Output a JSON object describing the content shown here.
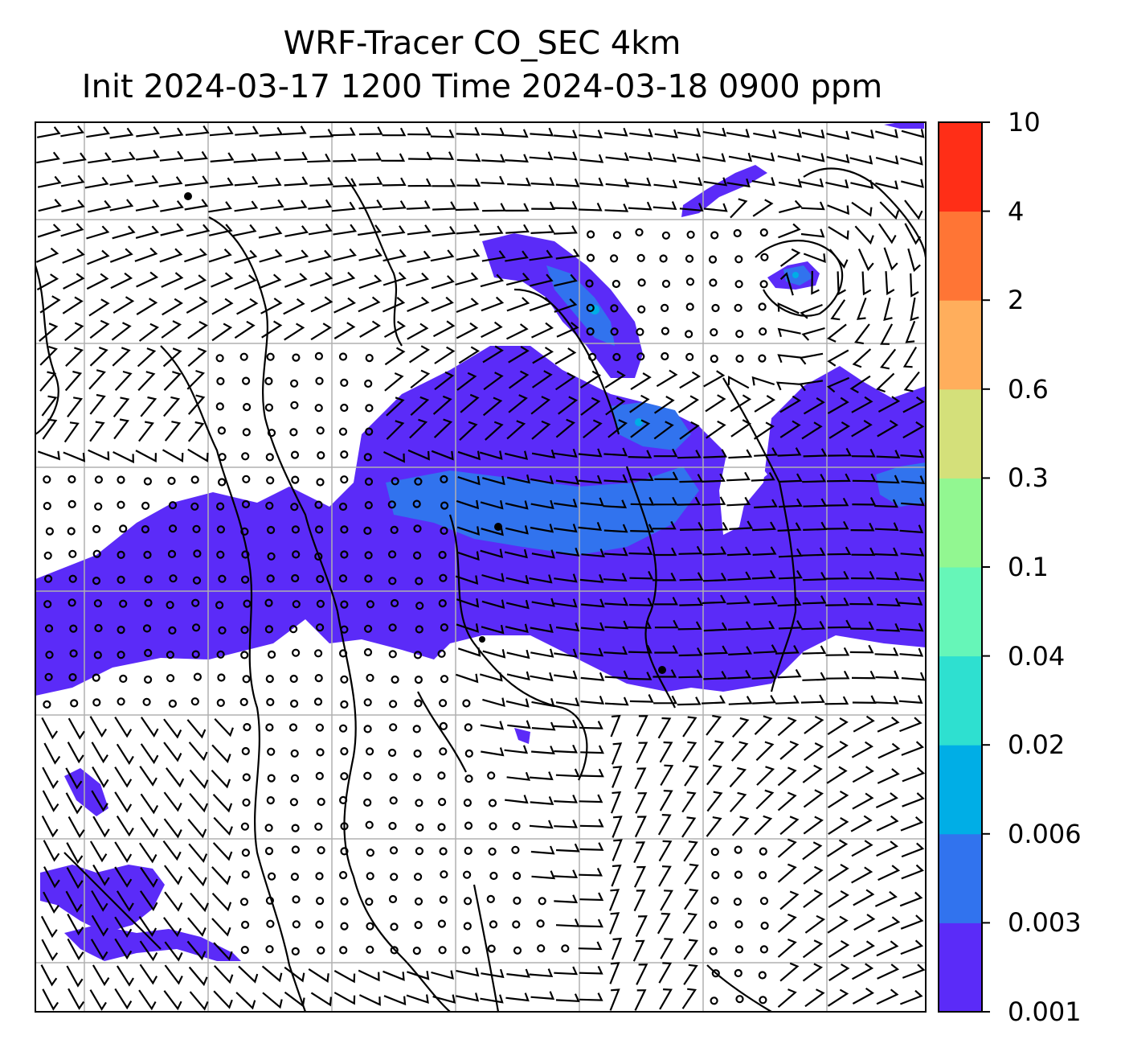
{
  "title": {
    "line1": "WRF-Tracer CO_SEC 4km",
    "line2": "Init 2024-03-17 1200 Time 2024-03-18 0900 ppm"
  },
  "colorbar": {
    "levels": [
      "0.001",
      "0.003",
      "0.006",
      "0.02",
      "0.04",
      "0.1",
      "0.3",
      "0.6",
      "2",
      "4",
      "10"
    ],
    "colors": [
      "#5b2bf8",
      "#3173ee",
      "#00aee6",
      "#2ee0d0",
      "#66f6b8",
      "#92f791",
      "#d4e07a",
      "#ffae5c",
      "#ff7535",
      "#ff2e17"
    ]
  },
  "map": {
    "gridlines": "on",
    "plume_color": "#5b2bf8",
    "plume_core_color": "#3173ee",
    "plume_peak_color": "#00aee6"
  }
}
